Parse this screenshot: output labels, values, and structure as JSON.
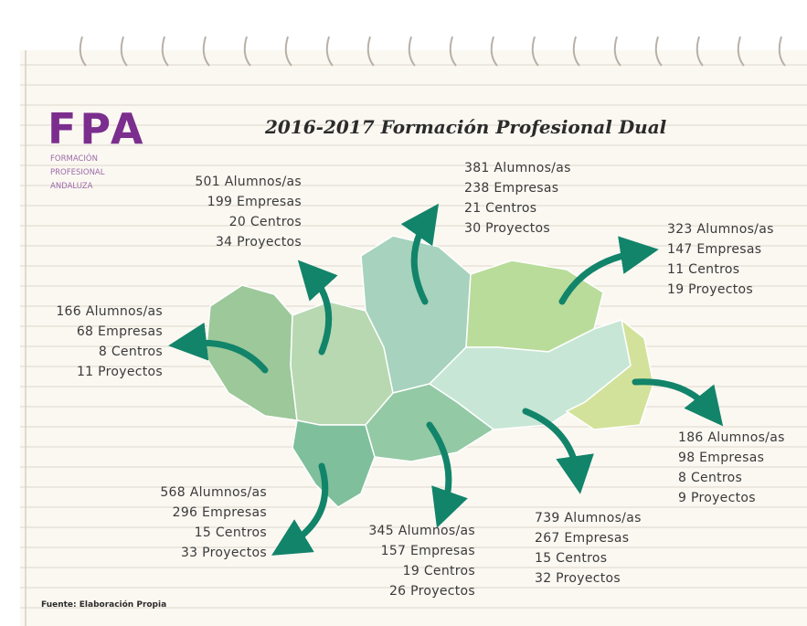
{
  "logo": {
    "letters": "FPA",
    "lines": [
      "FORMACIÓN",
      "PROFESIONAL",
      "ANDALUZA"
    ]
  },
  "title": "2016-2017 Formación Profesional Dual",
  "blocks": [
    {
      "lines": [
        "501 Alumnos/as",
        "199 Empresas",
        "20 Centros",
        "34 Proyectos"
      ]
    },
    {
      "lines": [
        "381 Alumnos/as",
        "238 Empresas",
        "21 Centros",
        "30 Proyectos"
      ]
    },
    {
      "lines": [
        "323 Alumnos/as",
        "147 Empresas",
        "11 Centros",
        "19 Proyectos"
      ]
    },
    {
      "lines": [
        "166 Alumnos/as",
        "68 Empresas",
        "8 Centros",
        "11 Proyectos"
      ]
    },
    {
      "lines": [
        "186 Alumnos/as",
        "98 Empresas",
        "8 Centros",
        "9 Proyectos"
      ]
    },
    {
      "lines": [
        "568 Alumnos/as",
        "296 Empresas",
        "15 Centros",
        "33 Proyectos"
      ]
    },
    {
      "lines": [
        "345 Alumnos/as",
        "157 Empresas",
        "19 Centros",
        "26 Proyectos"
      ]
    },
    {
      "lines": [
        "739 Alumnos/as",
        "267 Empresas",
        "15 Centros",
        "32 Proyectos"
      ]
    }
  ],
  "source": "Fuente: Elaboración Propia"
}
